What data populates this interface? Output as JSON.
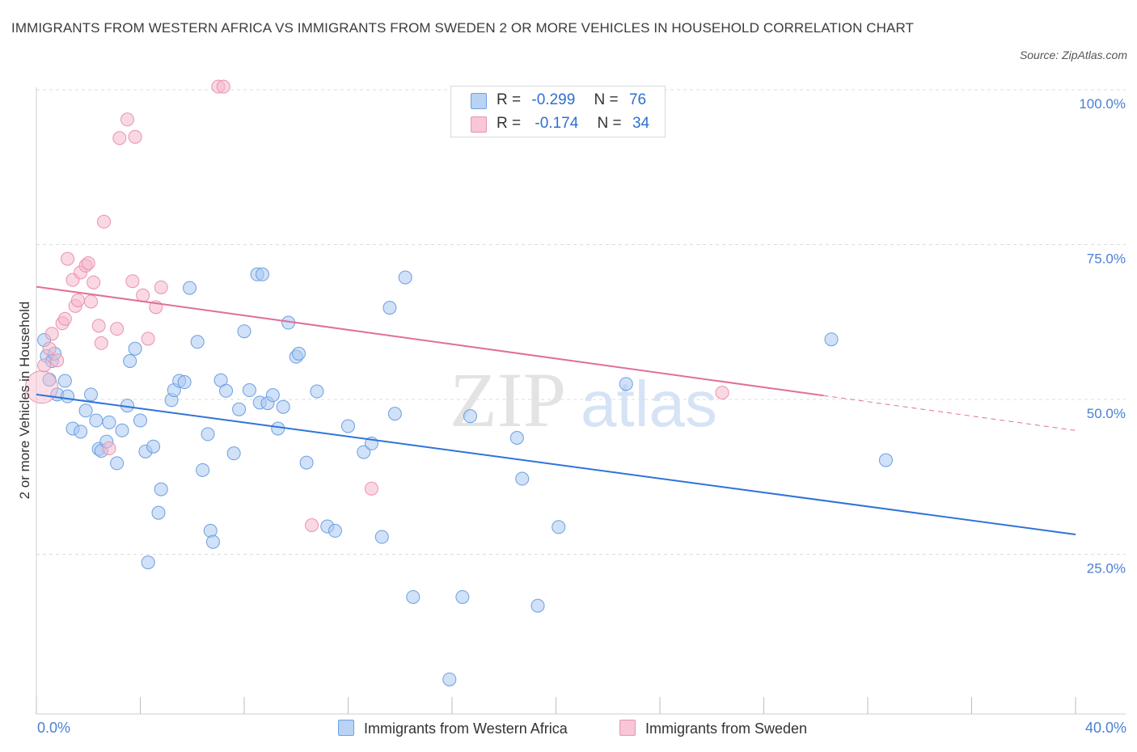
{
  "title": "IMMIGRANTS FROM WESTERN AFRICA VS IMMIGRANTS FROM SWEDEN 2 OR MORE VEHICLES IN HOUSEHOLD CORRELATION CHART",
  "source": "Source: ZipAtlas.com",
  "watermark": "ZIPatlas",
  "colors": {
    "blue_fill": "#a9c8f2",
    "blue_stroke": "#6c9fe0",
    "blue_line": "#2f74d6",
    "pink_fill": "#f5b8cb",
    "pink_stroke": "#e893b0",
    "pink_line": "#e0709a",
    "grid": "#dcdcdc",
    "tick_text": "#4a7fd4"
  },
  "legend": {
    "rows": [
      {
        "r_label": "R =",
        "r_value": "-0.299",
        "n_label": "N =",
        "n_value": "76"
      },
      {
        "r_label": "R =",
        "r_value": "-0.174",
        "n_label": "N =",
        "n_value": "34"
      }
    ]
  },
  "chart_data": {
    "type": "scatter",
    "title": "IMMIGRANTS FROM WESTERN AFRICA VS IMMIGRANTS FROM SWEDEN 2 OR MORE VEHICLES IN HOUSEHOLD CORRELATION CHART",
    "xlabel": "",
    "ylabel": "2 or more Vehicles in Household",
    "xlim": [
      0,
      40
    ],
    "ylim": [
      0,
      100
    ],
    "x_tick_labels": [
      "0.0%",
      "40.0%"
    ],
    "y_tick_labels": [
      "25.0%",
      "50.0%",
      "75.0%",
      "100.0%"
    ],
    "y_ticks": [
      25,
      50,
      75,
      100
    ],
    "grid": true,
    "legend_position": "bottom",
    "series": [
      {
        "name": "Immigrants from Western Africa",
        "color": "#6c9fe0",
        "r": "-0.299",
        "n": "76",
        "trend": {
          "x": [
            0,
            40
          ],
          "y": [
            50.8,
            28.2
          ]
        },
        "x": [
          0.3,
          0.4,
          0.5,
          0.8,
          0.6,
          0.7,
          1.2,
          1.4,
          1.7,
          1.9,
          2.1,
          2.3,
          2.4,
          2.5,
          2.7,
          2.8,
          3.1,
          3.3,
          3.5,
          3.6,
          3.8,
          4.0,
          4.2,
          4.3,
          4.5,
          4.7,
          4.8,
          5.2,
          5.3,
          5.5,
          5.7,
          5.9,
          6.2,
          6.4,
          6.6,
          6.7,
          6.8,
          7.1,
          7.3,
          7.6,
          7.8,
          8.0,
          8.2,
          8.5,
          8.6,
          8.7,
          8.9,
          9.1,
          9.3,
          9.5,
          9.7,
          10.0,
          10.1,
          10.4,
          10.8,
          11.2,
          11.5,
          12.0,
          12.6,
          12.9,
          13.3,
          13.6,
          13.8,
          14.2,
          14.5,
          15.9,
          16.4,
          16.7,
          18.5,
          18.7,
          19.3,
          20.1,
          22.7,
          30.6,
          32.7,
          1.1
        ],
        "y": [
          59.6,
          57.0,
          53.2,
          50.8,
          56.2,
          57.4,
          50.5,
          45.3,
          44.8,
          48.2,
          50.8,
          46.6,
          42.0,
          41.7,
          43.2,
          46.3,
          39.7,
          45.0,
          49.0,
          56.2,
          58.2,
          46.6,
          41.6,
          23.7,
          42.4,
          31.7,
          35.5,
          49.9,
          51.5,
          53.0,
          52.8,
          68.0,
          59.3,
          38.6,
          44.4,
          28.8,
          27.0,
          53.1,
          51.4,
          41.3,
          48.4,
          61.0,
          51.5,
          70.2,
          49.5,
          70.2,
          49.4,
          50.7,
          45.3,
          48.8,
          62.4,
          56.9,
          57.4,
          39.8,
          51.3,
          29.5,
          28.8,
          45.7,
          41.5,
          42.9,
          27.8,
          64.8,
          47.7,
          69.7,
          18.1,
          4.8,
          18.1,
          47.3,
          43.8,
          37.2,
          16.7,
          29.4,
          52.5,
          59.7,
          40.2,
          53.0
        ]
      },
      {
        "name": "Immigrants from Sweden",
        "color": "#e893b0",
        "r": "-0.174",
        "n": "34",
        "trend": {
          "x": [
            0,
            40
          ],
          "y": [
            68.2,
            45.0
          ]
        },
        "trend_solid_until_x": 30.3,
        "x": [
          0.2,
          0.3,
          0.5,
          0.6,
          0.8,
          1.0,
          1.1,
          1.2,
          1.4,
          1.5,
          1.6,
          1.7,
          1.9,
          2.0,
          2.1,
          2.2,
          2.4,
          2.5,
          2.6,
          2.8,
          3.1,
          3.2,
          3.5,
          3.7,
          3.8,
          4.1,
          4.3,
          4.6,
          4.8,
          7.0,
          7.2,
          10.6,
          12.9,
          26.4
        ],
        "y": [
          52.0,
          55.5,
          58.2,
          60.6,
          56.3,
          62.3,
          63.0,
          72.7,
          69.3,
          65.1,
          66.0,
          70.5,
          71.6,
          72.0,
          65.8,
          68.9,
          61.9,
          59.1,
          78.7,
          42.1,
          61.4,
          92.2,
          95.2,
          69.1,
          92.4,
          66.8,
          59.8,
          64.9,
          68.1,
          100.5,
          100.5,
          29.7,
          35.6,
          51.1
        ]
      }
    ]
  }
}
